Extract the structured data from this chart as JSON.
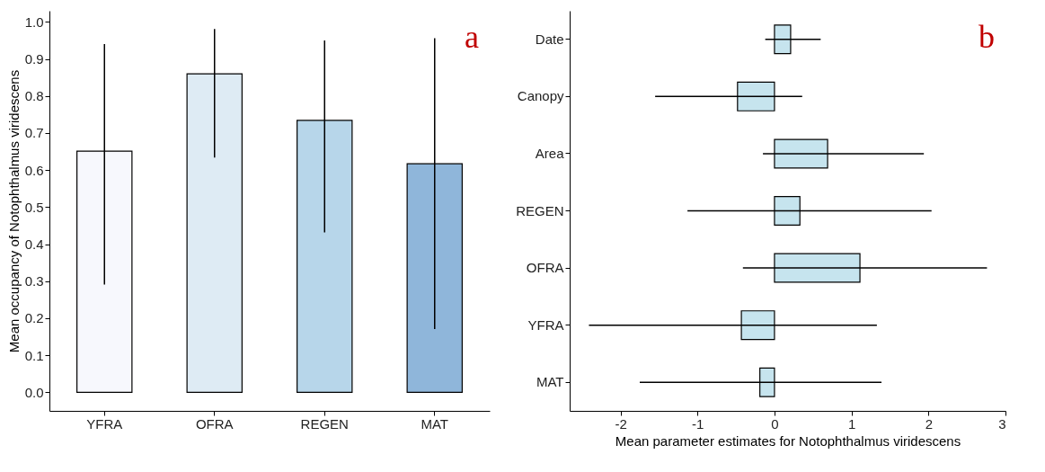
{
  "chart_data": [
    {
      "type": "bar",
      "categories": [
        "YFRA",
        "OFRA",
        "REGEN",
        "MAT"
      ],
      "values": [
        0.651,
        0.86,
        0.734,
        0.617
      ],
      "colors": [
        "#f7f8fd",
        "#deebf4",
        "#b7d6ea",
        "#8fb6da"
      ],
      "errors": [
        [
          0.291,
          0.94
        ],
        [
          0.634,
          0.981
        ],
        [
          0.432,
          0.95
        ],
        [
          0.171,
          0.956
        ]
      ],
      "ylabel": "Mean occupancy of  Notophthalmus viridescens",
      "ylim": [
        -0.05,
        1.03
      ],
      "yticks": [
        {
          "value": 0,
          "label": "0.0"
        },
        {
          "value": 0.1,
          "label": "0.1"
        },
        {
          "value": 0.2,
          "label": "0.2"
        },
        {
          "value": 0.3,
          "label": "0.3"
        },
        {
          "value": 0.4,
          "label": "0.4"
        },
        {
          "value": 0.5,
          "label": "0.5"
        },
        {
          "value": 0.6,
          "label": "0.6"
        },
        {
          "value": 0.7,
          "label": "0.7"
        },
        {
          "value": 0.8,
          "label": "0.8"
        },
        {
          "value": 0.9,
          "label": "0.9"
        },
        {
          "value": 1,
          "label": "1.0"
        }
      ],
      "annotations": [
        "a"
      ],
      "grid": false,
      "legend": false
    },
    {
      "type": "bar",
      "orientation": "horizontal",
      "categories": [
        "Date",
        "Canopy",
        "Area",
        "REGEN",
        "OFRA",
        "YFRA",
        "MAT"
      ],
      "values": [
        0.21,
        -0.48,
        0.69,
        0.33,
        1.11,
        -0.43,
        -0.19
      ],
      "color": "#c6e4ee",
      "errors": [
        [
          -0.12,
          0.6
        ],
        [
          -1.55,
          0.36
        ],
        [
          -0.15,
          1.94
        ],
        [
          -1.13,
          2.04
        ],
        [
          -0.41,
          2.76
        ],
        [
          -2.41,
          1.33
        ],
        [
          -1.75,
          1.39
        ]
      ],
      "xlabel": "Mean parameter estimates for Notophthalmus viridescens",
      "xlim": [
        -2.66,
        3
      ],
      "xticks": [
        -2,
        -1,
        0,
        1,
        2,
        3
      ],
      "annotations": [
        "b"
      ],
      "grid": false,
      "legend": false
    }
  ]
}
